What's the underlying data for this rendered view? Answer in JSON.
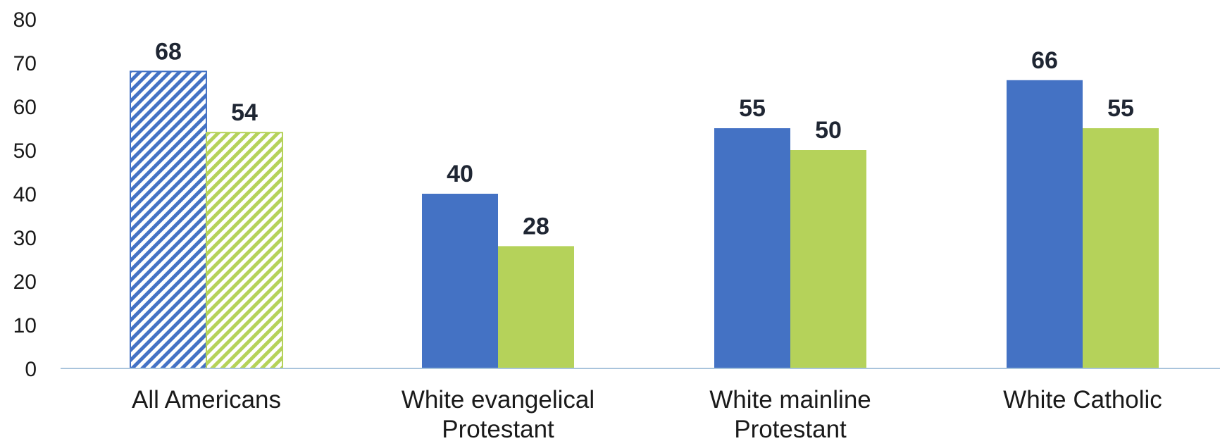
{
  "chart_data": {
    "type": "bar",
    "title": "",
    "xlabel": "",
    "ylabel": "",
    "ylim": [
      0,
      80
    ],
    "yticks": [
      0,
      10,
      20,
      30,
      40,
      50,
      60,
      70,
      80
    ],
    "grid": false,
    "legend": "none",
    "categories": [
      [
        "All Americans"
      ],
      [
        "White evangelical",
        "Protestant"
      ],
      [
        "White mainline",
        "Protestant"
      ],
      [
        "White Catholic"
      ]
    ],
    "series": [
      {
        "color": "#4472C4",
        "values": [
          68,
          40,
          55,
          66
        ],
        "hatched": [
          true,
          false,
          false,
          false
        ]
      },
      {
        "color": "#B5D25A",
        "values": [
          54,
          28,
          50,
          55
        ],
        "hatched": [
          true,
          false,
          false,
          false
        ]
      }
    ],
    "colors": {
      "axis": "#a9c4dc",
      "text": "#1a1a1a",
      "data_label": "#1f2633"
    }
  }
}
